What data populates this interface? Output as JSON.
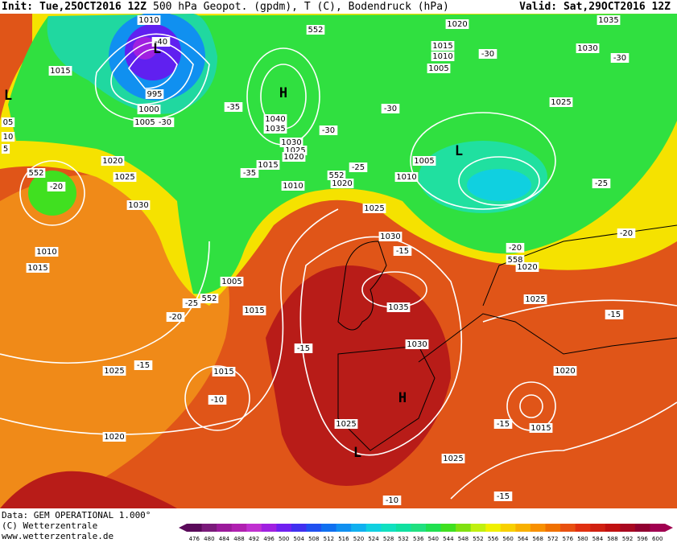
{
  "header": {
    "init": "Init: Tue,25OCT2016 12Z",
    "title": "500 hPa Geopot. (gpdm), T (C), Bodendruck (hPa)",
    "valid": "Valid: Sat,29OCT2016 12Z"
  },
  "map_labels": [
    "1010",
    "1015",
    "995",
    "1000",
    "1005",
    "-30",
    "-40",
    "L",
    "H",
    "1040",
    "1035",
    "1030",
    "1025",
    "1020",
    "1015",
    "-35",
    "-35",
    "-30",
    "-30",
    "552",
    "1020",
    "1015",
    "1010",
    "1005",
    "-30",
    "1035",
    "1030",
    "-30",
    "1025",
    "L",
    "1005",
    "1010",
    "-25",
    "552",
    "1020",
    "1010",
    "-25",
    "-20",
    "1020",
    "1025",
    "1030",
    "1010",
    "1015",
    "-20",
    "552",
    "1025",
    "1030",
    "-15",
    "558",
    "-20",
    "1020",
    "1005",
    "552",
    "1015",
    "-25",
    "-20",
    "1035",
    "1025",
    "-15",
    "-15",
    "1030",
    "1025",
    "-15",
    "1015",
    "-10",
    "H",
    "1020",
    "1025",
    "L",
    "-15",
    "1015",
    "1020",
    "1025",
    "-10",
    "-15",
    "05",
    "10",
    "5",
    "L"
  ],
  "footer": {
    "source": "Data: GEM OPERATIONAL 1.000°",
    "copyright": "(C) Wetterzentrale",
    "url": "www.wetterzentrale.de"
  },
  "colorbar": {
    "labels": [
      476,
      480,
      484,
      488,
      492,
      496,
      500,
      504,
      508,
      512,
      516,
      520,
      524,
      528,
      532,
      536,
      540,
      544,
      548,
      552,
      556,
      560,
      564,
      568,
      572,
      576,
      580,
      584,
      588,
      592,
      596,
      600
    ],
    "colors": [
      "#5a0a5a",
      "#7a1a7a",
      "#9a1a9a",
      "#b020b0",
      "#c030d0",
      "#a020e0",
      "#7020f0",
      "#4030f0",
      "#2050f0",
      "#1070f0",
      "#1090f0",
      "#10b0f0",
      "#10d0e0",
      "#10e0c0",
      "#10e0a0",
      "#20e080",
      "#20e050",
      "#40e020",
      "#80e010",
      "#c0f010",
      "#f0f000",
      "#f8d000",
      "#f8b000",
      "#f89000",
      "#f07000",
      "#e85010",
      "#e03010",
      "#d02010",
      "#c01010",
      "#a80820",
      "#900030",
      "#a00050"
    ]
  }
}
